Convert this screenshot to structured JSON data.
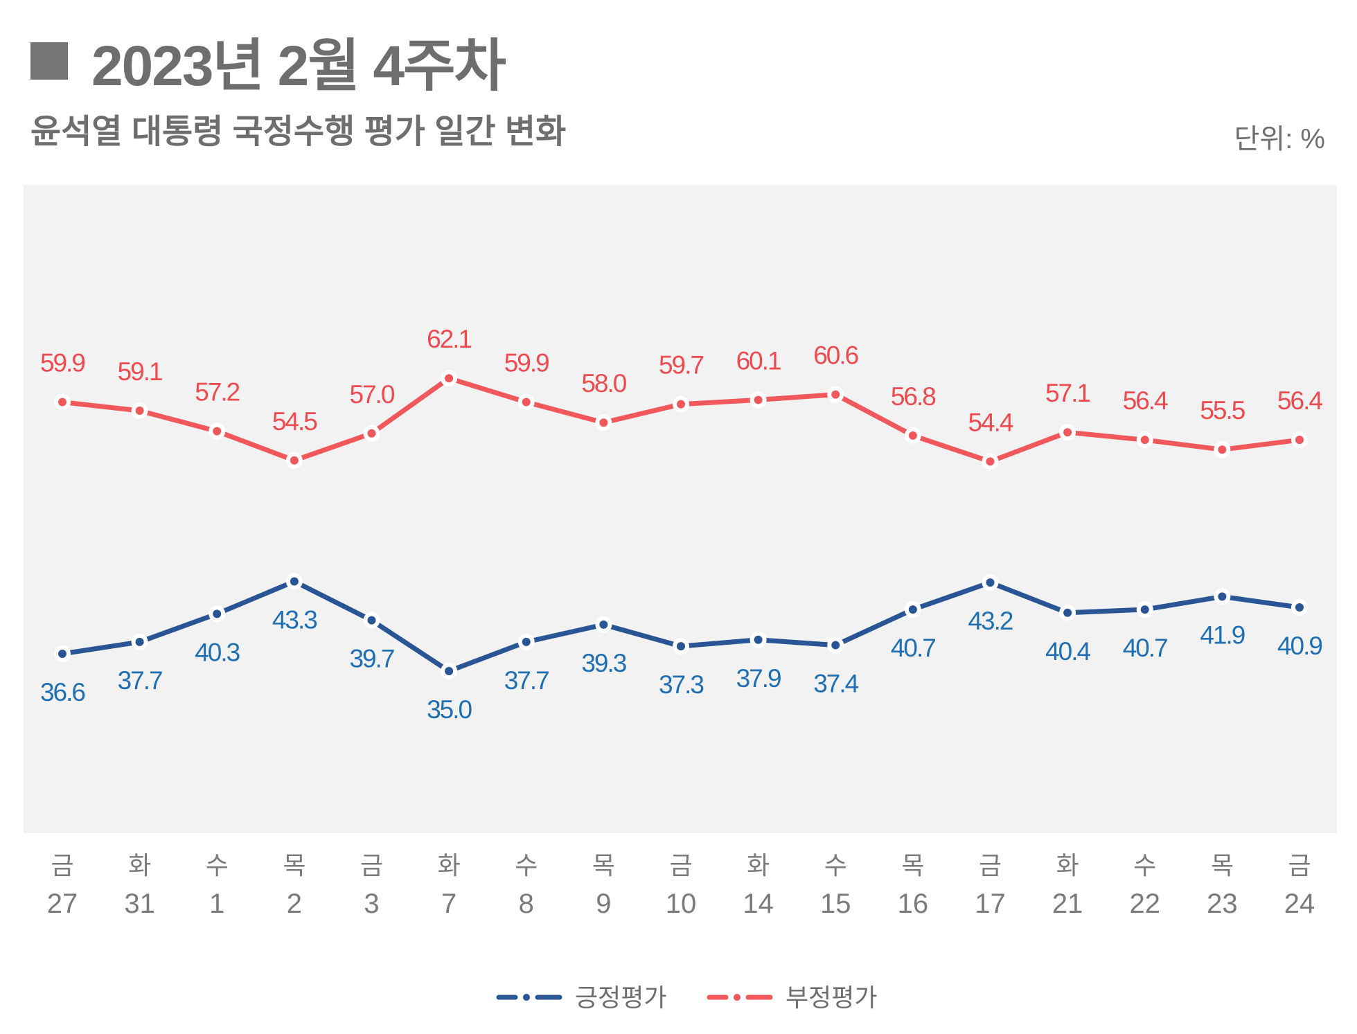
{
  "header": {
    "title": "2023년 2월 4주차",
    "subtitle": "윤석열 대통령 국정수행 평가 일간 변화",
    "unit": "단위: %"
  },
  "chart_data": {
    "type": "line",
    "title": "윤석열 대통령 국정수행 평가 일간 변화",
    "xlabel": "",
    "ylabel": "",
    "unit": "%",
    "ylim": [
      20,
      80
    ],
    "grid": false,
    "legend_position": "bottom-center",
    "categories": [
      {
        "day": "금",
        "date": "27"
      },
      {
        "day": "화",
        "date": "31"
      },
      {
        "day": "수",
        "date": "1"
      },
      {
        "day": "목",
        "date": "2"
      },
      {
        "day": "금",
        "date": "3"
      },
      {
        "day": "화",
        "date": "7"
      },
      {
        "day": "수",
        "date": "8"
      },
      {
        "day": "목",
        "date": "9"
      },
      {
        "day": "금",
        "date": "10"
      },
      {
        "day": "화",
        "date": "14"
      },
      {
        "day": "수",
        "date": "15"
      },
      {
        "day": "목",
        "date": "16"
      },
      {
        "day": "금",
        "date": "17"
      },
      {
        "day": "화",
        "date": "21"
      },
      {
        "day": "수",
        "date": "22"
      },
      {
        "day": "목",
        "date": "23"
      },
      {
        "day": "금",
        "date": "24"
      }
    ],
    "series": [
      {
        "name": "긍정평가",
        "color": "#2a5594",
        "label_color": "#1f6fb2",
        "values": [
          36.6,
          37.7,
          40.3,
          43.3,
          39.7,
          35.0,
          37.7,
          39.3,
          37.3,
          37.9,
          37.4,
          40.7,
          43.2,
          40.4,
          40.7,
          41.9,
          40.9
        ],
        "labels": [
          "36.6",
          "37.7",
          "40.3",
          "43.3",
          "39.7",
          "35.0",
          "37.7",
          "39.3",
          "37.3",
          "37.9",
          "37.4",
          "40.7",
          "43.2",
          "40.4",
          "40.7",
          "41.9",
          "40.9"
        ],
        "label_side": [
          "below",
          "below",
          "below",
          "below",
          "below",
          "below",
          "below",
          "below",
          "below",
          "below",
          "below",
          "below",
          "below",
          "below",
          "below",
          "below",
          "below"
        ]
      },
      {
        "name": "부정평가",
        "color": "#f0585c",
        "label_color": "#ef4a4f",
        "values": [
          59.9,
          59.1,
          57.2,
          54.5,
          57.0,
          62.1,
          59.9,
          58.0,
          59.7,
          60.1,
          60.6,
          56.8,
          54.4,
          57.1,
          56.4,
          55.5,
          56.4
        ],
        "labels": [
          "59.9",
          "59.1",
          "57.2",
          "54.5",
          "57.0",
          "62.1",
          "59.9",
          "58.0",
          "59.7",
          "60.1",
          "60.6",
          "56.8",
          "54.4",
          "57.1",
          "56.4",
          "55.5",
          "56.4"
        ],
        "label_side": [
          "above",
          "above",
          "above",
          "above",
          "above",
          "above",
          "above",
          "above",
          "above",
          "above",
          "above",
          "above",
          "above",
          "above",
          "above",
          "above",
          "above"
        ]
      }
    ]
  }
}
